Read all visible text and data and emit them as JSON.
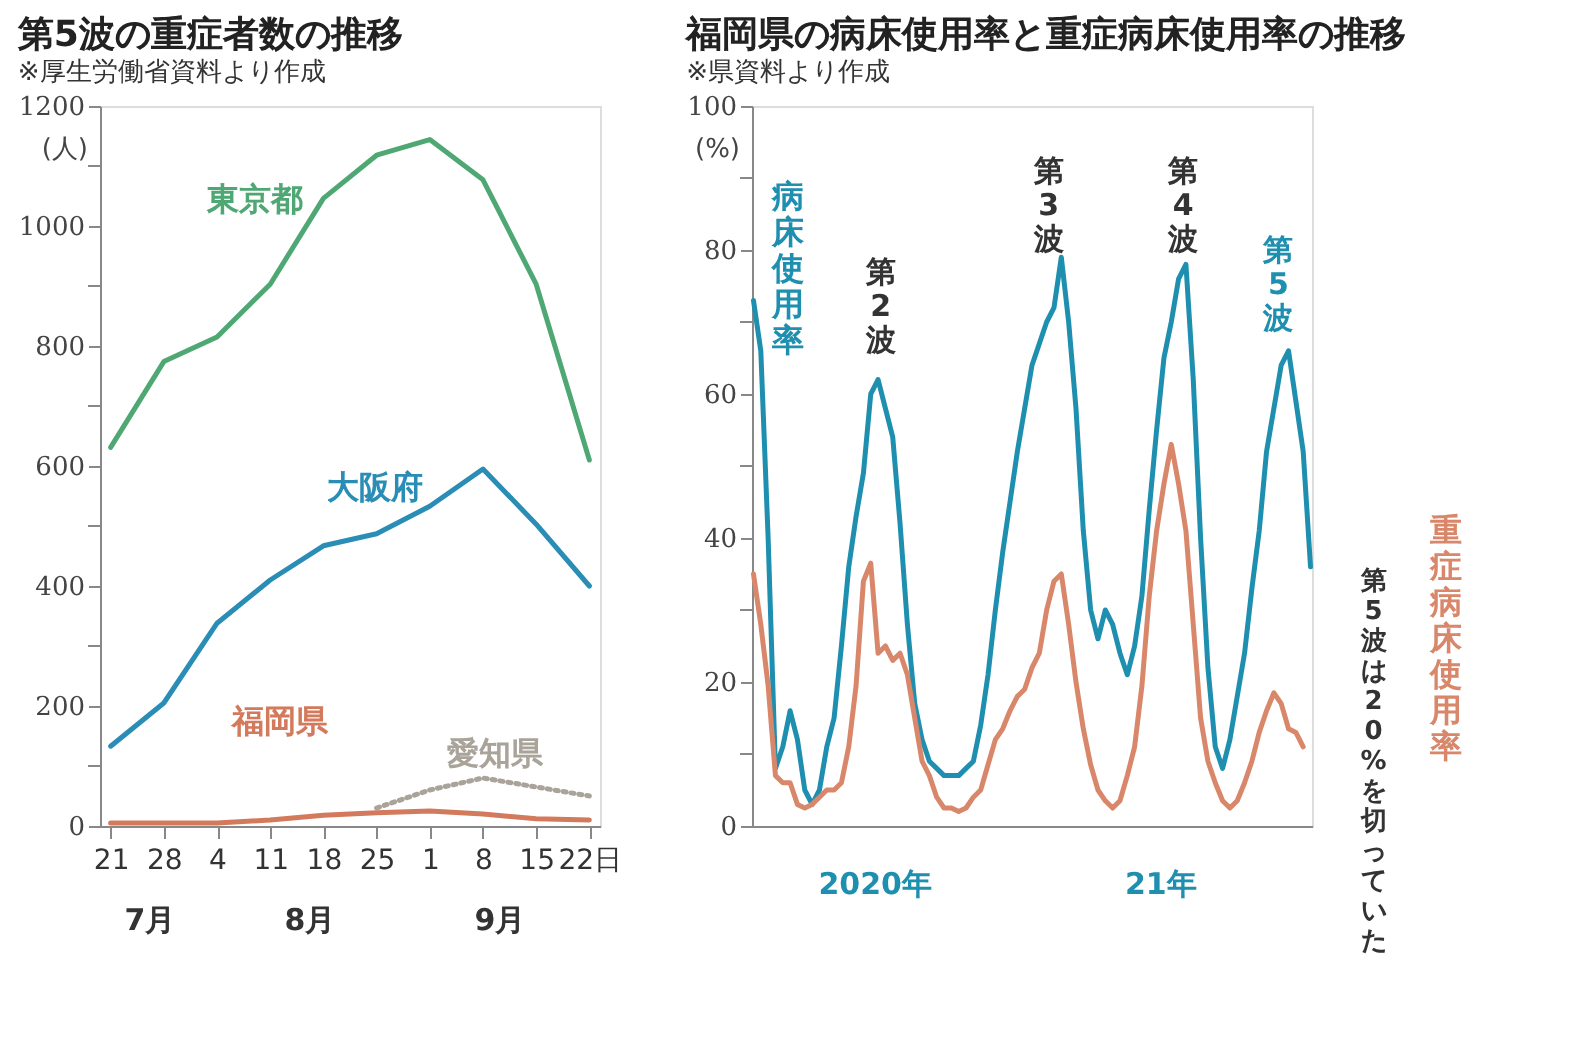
{
  "chart_data": [
    {
      "type": "line",
      "title": "第5波の重症者数の推移",
      "subtitle": "※厚生労働省資料より作成",
      "ylabel": "(人)",
      "categories": [
        "21",
        "28",
        "4",
        "11",
        "18",
        "25",
        "1",
        "8",
        "15",
        "22日"
      ],
      "ylim": [
        0,
        1200
      ],
      "yticks": [
        0,
        {
          "value": 100,
          "label": null
        },
        200,
        {
          "value": 300,
          "label": null
        },
        400,
        {
          "value": 500,
          "label": null
        },
        600,
        {
          "value": 700,
          "label": null
        },
        800,
        {
          "value": 900,
          "label": null
        },
        1000,
        {
          "value": 1100,
          "label": null
        },
        1200
      ],
      "grid": false,
      "marker": "none",
      "annotations": [
        "7月",
        "8月",
        "9月"
      ],
      "series": [
        {
          "name": "東京都",
          "color": "#4fa874",
          "values": [
            631,
            774,
            815,
            903,
            1046,
            1118,
            1144,
            1077,
            903,
            610
          ]
        },
        {
          "name": "大阪府",
          "color": "#2a8db5",
          "values": [
            133,
            205,
            338,
            410,
            467,
            487,
            533,
            595,
            503,
            400
          ]
        },
        {
          "name": "福岡県",
          "color": "#d37a5c",
          "values": [
            5,
            5,
            5,
            10,
            18,
            22,
            25,
            20,
            12,
            10
          ]
        },
        {
          "name": "愛知県",
          "color": "#a9a39a",
          "line_style": "dotted",
          "values": [
            null,
            null,
            null,
            null,
            null,
            30,
            60,
            80,
            65,
            50
          ]
        }
      ]
    },
    {
      "type": "line",
      "title": "福岡県の病床使用率と重症病床使用率の推移",
      "subtitle": "※県資料より作成",
      "ylabel": "(%)",
      "categories": [
        null,
        null,
        null,
        null,
        null,
        null,
        null,
        null,
        null,
        null,
        null,
        null,
        null,
        null,
        null,
        null,
        null,
        null,
        null,
        null,
        null,
        null,
        null,
        null,
        null,
        null,
        null,
        null,
        null,
        null,
        null,
        null,
        null,
        null,
        null,
        null,
        null,
        null,
        null,
        null,
        null,
        null,
        null,
        null,
        null,
        null,
        null,
        null,
        null,
        null,
        null,
        null,
        null,
        null,
        null,
        null,
        null,
        null,
        null,
        null,
        null,
        null,
        null,
        null,
        null,
        null,
        null,
        null,
        null,
        null,
        null,
        null,
        null,
        null,
        null,
        null,
        null
      ],
      "ylim": [
        0,
        100
      ],
      "yticks": [
        0,
        {
          "value": 10,
          "label": null
        },
        20,
        {
          "value": 30,
          "label": null
        },
        40,
        {
          "value": 50,
          "label": null
        },
        60,
        {
          "value": 70,
          "label": null
        },
        80,
        {
          "value": 90,
          "label": null
        },
        100
      ],
      "tick_labels": "y",
      "grid": false,
      "marker": "none",
      "annotations": [
        "第2波",
        "第3波",
        "第4波",
        "第5波",
        "第5波は20%を切っていた",
        "2020年",
        "21年"
      ],
      "series": [
        {
          "name": "病床使用率",
          "color": "#1f8fb0",
          "values": [
            73,
            66,
            40,
            8,
            11,
            16,
            12,
            5,
            3,
            5,
            11,
            15,
            25,
            36,
            43,
            49,
            60,
            62,
            58,
            54,
            42,
            28,
            17,
            12,
            9,
            8,
            7,
            7,
            7,
            8,
            9,
            14,
            21,
            30,
            38,
            45,
            52,
            58,
            64,
            67,
            70,
            72,
            79,
            70,
            58,
            41,
            30,
            26,
            30,
            28,
            24,
            21,
            25,
            32,
            44,
            55,
            65,
            70,
            76,
            78,
            62,
            40,
            22,
            11,
            8,
            12,
            18,
            24,
            33,
            41,
            52,
            58,
            64,
            66,
            59,
            52,
            36
          ]
        },
        {
          "name": "重症病床使用率",
          "color": "#d9876a",
          "values": [
            35,
            28,
            19.5,
            7,
            6,
            6,
            3,
            2.5,
            3,
            4,
            5,
            5,
            6,
            11,
            19.5,
            34,
            36.5,
            24,
            25,
            23,
            24,
            21,
            15,
            9,
            7,
            4,
            2.5,
            2.5,
            2,
            2.5,
            4,
            5,
            8.5,
            12,
            13.5,
            16,
            18,
            19,
            22,
            24,
            30,
            34,
            35,
            28,
            20,
            13.5,
            8.5,
            5,
            3.5,
            2.5,
            3.5,
            7,
            11,
            19.5,
            32,
            41,
            47.5,
            53,
            47.5,
            41,
            28,
            15,
            9,
            6,
            3.5,
            2.5,
            3.5,
            6,
            9,
            13,
            16,
            18.5,
            17,
            13.5,
            13,
            11,
            null
          ]
        }
      ]
    }
  ]
}
